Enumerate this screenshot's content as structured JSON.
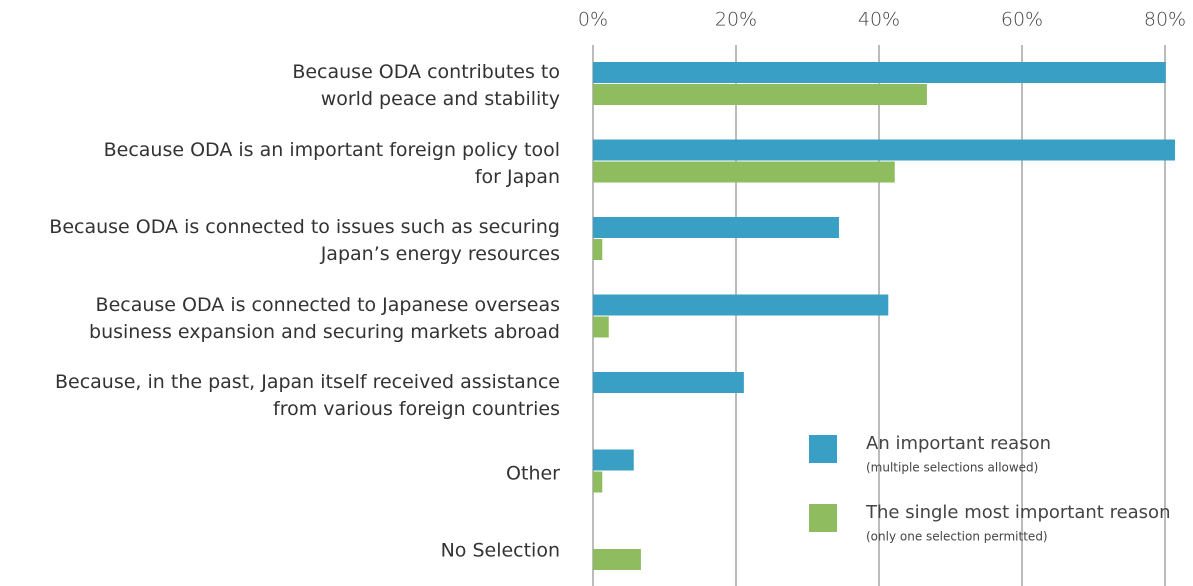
{
  "chart_data": {
    "type": "hbar",
    "categories": [
      "Because ODA contributes to\nworld peace and stability",
      "Because ODA is an important foreign policy tool\nfor Japan",
      "Because ODA is connected to issues such as securing\nJapan’s energy resources",
      "Because ODA is connected to Japanese overseas\nbusiness expansion and securing markets abroad",
      "Because, in the past, Japan itself received assistance\nfrom various foreign countries",
      "Other",
      "No Selection"
    ],
    "series": [
      {
        "name": "An important reason",
        "note": "(multiple selections allowed)",
        "color": "#3a9fc5",
        "values": [
          80.1,
          81.4,
          34.4,
          41.3,
          21.1,
          5.7,
          null
        ]
      },
      {
        "name": "The single most important reason",
        "note": "(only one selection permitted)",
        "color": "#8fbc5e",
        "values": [
          46.7,
          42.2,
          1.3,
          2.2,
          null,
          1.3,
          6.7
        ]
      }
    ],
    "xlim": [
      0,
      82
    ],
    "xticks": [
      {
        "value": 0,
        "label": "0%"
      },
      {
        "value": 20,
        "label": "20%"
      },
      {
        "value": 40,
        "label": "40%"
      },
      {
        "value": 60,
        "label": "60%"
      },
      {
        "value": 80,
        "label": "80%"
      }
    ],
    "grid": true
  }
}
